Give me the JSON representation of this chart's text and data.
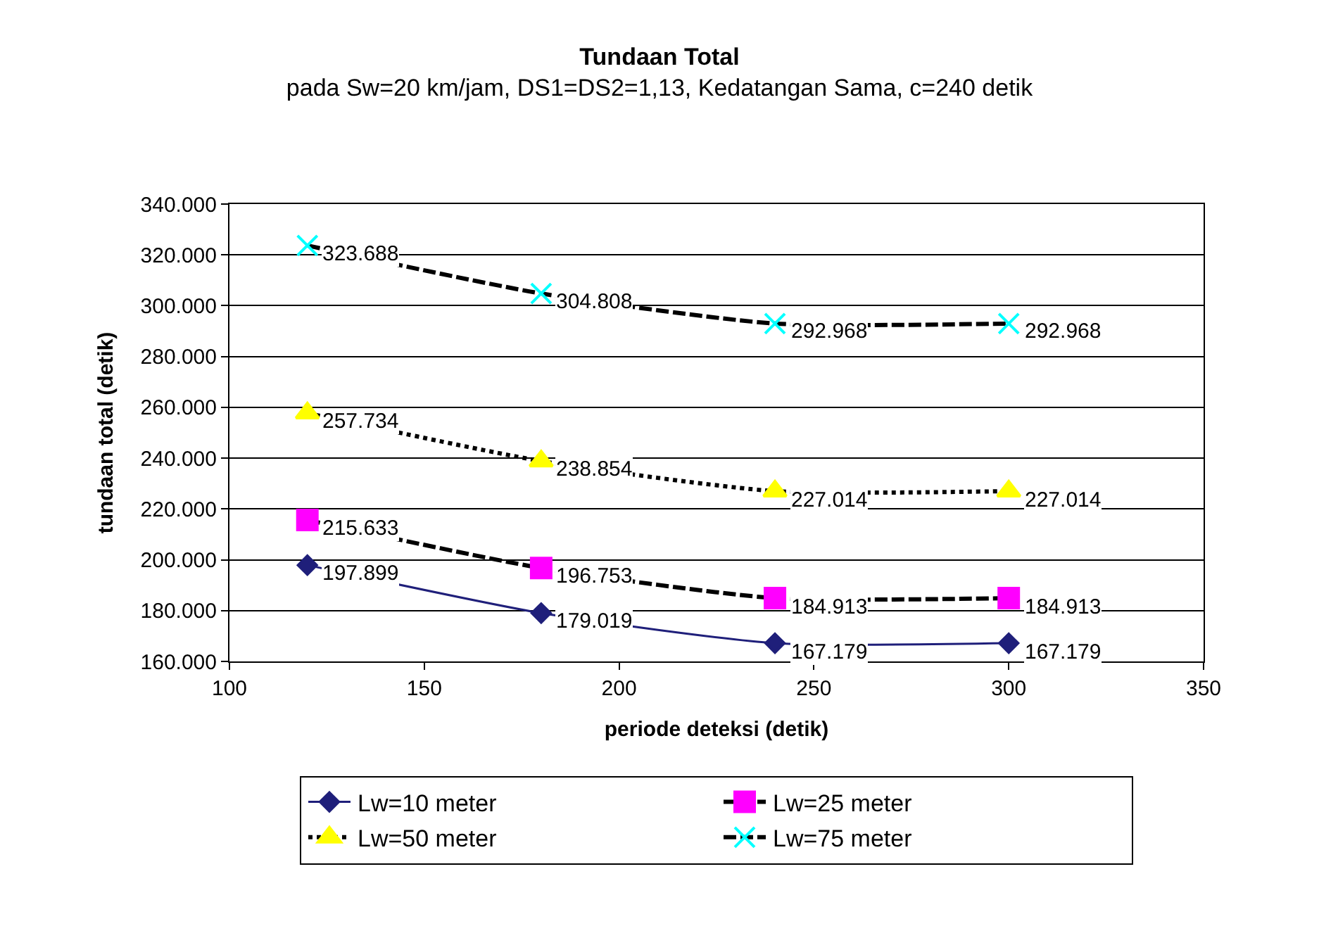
{
  "chart_data": {
    "type": "line",
    "title": "Tundaan Total",
    "subtitle": "pada Sw=20 km/jam, DS1=DS2=1,13, Kedatangan Sama, c=240 detik",
    "xlabel": "periode deteksi (detik)",
    "ylabel": "tundaan total (detik)",
    "x": [
      120,
      180,
      240,
      300
    ],
    "xlim": [
      100,
      350
    ],
    "xticks": [
      100,
      150,
      200,
      250,
      300,
      350
    ],
    "ylim": [
      160000,
      340000
    ],
    "yticks": [
      {
        "value": 160000,
        "label": "160.000"
      },
      {
        "value": 180000,
        "label": "180.000"
      },
      {
        "value": 200000,
        "label": "200.000"
      },
      {
        "value": 220000,
        "label": "220.000"
      },
      {
        "value": 240000,
        "label": "240.000"
      },
      {
        "value": 260000,
        "label": "260.000"
      },
      {
        "value": 280000,
        "label": "280.000"
      },
      {
        "value": 300000,
        "label": "300.000"
      },
      {
        "value": 320000,
        "label": "320.000"
      },
      {
        "value": 340000,
        "label": "340.000"
      }
    ],
    "grid": "y",
    "legend": "bottom",
    "series": [
      {
        "name": "Lw=10 meter",
        "color": "#1f1f7a",
        "colors": [
          "#1f1f7a",
          "#1f1f7a",
          "#1f1f7a",
          "#1f1f7a"
        ],
        "marker": "diamond",
        "line_style": "solid",
        "values": [
          197899,
          179019,
          167179,
          167179
        ],
        "value_labels": [
          "197.899",
          "179.019",
          "167.179",
          "167.179"
        ]
      },
      {
        "name": "Lw=25 meter",
        "color": "#000000",
        "colors": [
          "#ff00ff",
          "#ff00ff",
          "#ff00ff",
          "#ff00ff"
        ],
        "marker": "square",
        "line_style": "dashed",
        "values": [
          215633,
          196753,
          184913,
          184913
        ],
        "value_labels": [
          "215.633",
          "196.753",
          "184.913",
          "184.913"
        ]
      },
      {
        "name": "Lw=50 meter",
        "color": "#000000",
        "colors": [
          "#ffff00",
          "#ffff00",
          "#ffff00",
          "#ffff00"
        ],
        "marker": "triangle",
        "line_style": "dotted",
        "values": [
          257734,
          238854,
          227014,
          227014
        ],
        "value_labels": [
          "257.734",
          "238.854",
          "227.014",
          "227.014"
        ]
      },
      {
        "name": "Lw=75 meter",
        "color": "#000000",
        "colors": [
          "#00ffff",
          "#00ffff",
          "#00ffff",
          "#00ffff"
        ],
        "marker": "cross",
        "line_style": "dashed",
        "values": [
          323688,
          304808,
          292968,
          292968
        ],
        "value_labels": [
          "323.688",
          "304.808",
          "292.968",
          "292.968"
        ]
      }
    ]
  }
}
